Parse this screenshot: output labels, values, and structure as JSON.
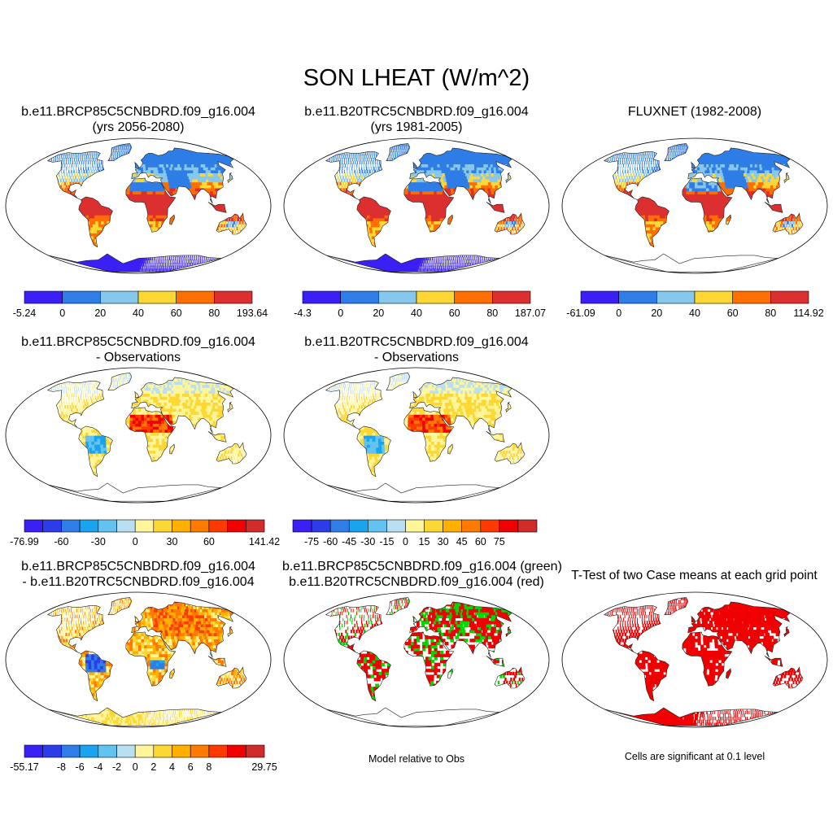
{
  "title": "SON LHEAT (W/m^2)",
  "palettes": {
    "mean": [
      "#3a20f5",
      "#2f7de6",
      "#86c8ec",
      "#fdd835",
      "#ff6e00",
      "#dc2f2f"
    ],
    "diff": [
      "#3a20f5",
      "#2b3ce8",
      "#2f7de6",
      "#19a4ef",
      "#63c3f0",
      "#b9e0f2",
      "#fff59a",
      "#fdd835",
      "#ffb000",
      "#ff7a00",
      "#ff3a00",
      "#f00000",
      "#d02c2c"
    ]
  },
  "panels": [
    {
      "line1": "b.e11.BRCP85C5CNBDRD.f09_g16.004",
      "line2": "(yrs 2056-2080)",
      "mode": "mean",
      "style": "case"
    },
    {
      "line1": "b.e11.B20TRC5CNBDRD.f09_g16.004",
      "line2": "(yrs 1981-2005)",
      "mode": "mean",
      "style": "case"
    },
    {
      "line1": "",
      "line2": "FLUXNET (1982-2008)",
      "mode": "mean",
      "style": "obs"
    },
    {
      "line1": "b.e11.BRCP85C5CNBDRD.f09_g16.004",
      "line2": "- Observations",
      "mode": "diff",
      "style": "bias"
    },
    {
      "line1": "b.e11.B20TRC5CNBDRD.f09_g16.004",
      "line2": "- Observations",
      "mode": "diff",
      "style": "bias"
    },
    {
      "line1": "b.e11.BRCP85C5CNBDRD.f09_g16.004",
      "line2": "- b.e11.B20TRC5CNBDRD.f09_g16.004",
      "mode": "diff",
      "style": "casediff"
    },
    {
      "line1": "b.e11.BRCP85C5CNBDRD.f09_g16.004 (green)",
      "line2": "b.e11.B20TRC5CNBDRD.f09_g16.004 (red)",
      "mode": "sig",
      "style": "rel"
    },
    {
      "line1": "",
      "line2": "T-Test of two Case means at each grid point",
      "mode": "sig",
      "style": "ttest"
    }
  ],
  "colorbars": [
    {
      "palette": "mean",
      "labels": [
        "-5.24",
        "0",
        "20",
        "40",
        "60",
        "80",
        "193.64"
      ]
    },
    {
      "palette": "mean",
      "labels": [
        "-4.3",
        "0",
        "20",
        "40",
        "60",
        "80",
        "187.07"
      ]
    },
    {
      "palette": "mean",
      "labels": [
        "-61.09",
        "0",
        "20",
        "40",
        "60",
        "80",
        "114.92"
      ]
    },
    {
      "palette": "diff",
      "labels": [
        "-76.99",
        "",
        "-60",
        "",
        "-30",
        "",
        "0",
        "",
        "30",
        "",
        "60",
        "",
        "",
        "141.42"
      ]
    },
    {
      "palette": "diff",
      "labels": [
        "",
        "-75",
        "-60",
        "-45",
        "-30",
        "-15",
        "0",
        "15",
        "30",
        "45",
        "60",
        "75",
        "",
        ""
      ]
    },
    {
      "palette": "diff",
      "labels": [
        "-55.17",
        "",
        "-8",
        "-6",
        "-4",
        "-2",
        "0",
        "2",
        "4",
        "6",
        "8",
        "",
        "",
        "29.75"
      ]
    }
  ],
  "notes": {
    "rel": "Model relative to Obs",
    "ttest": "Cells are significant at 0.1 level"
  }
}
